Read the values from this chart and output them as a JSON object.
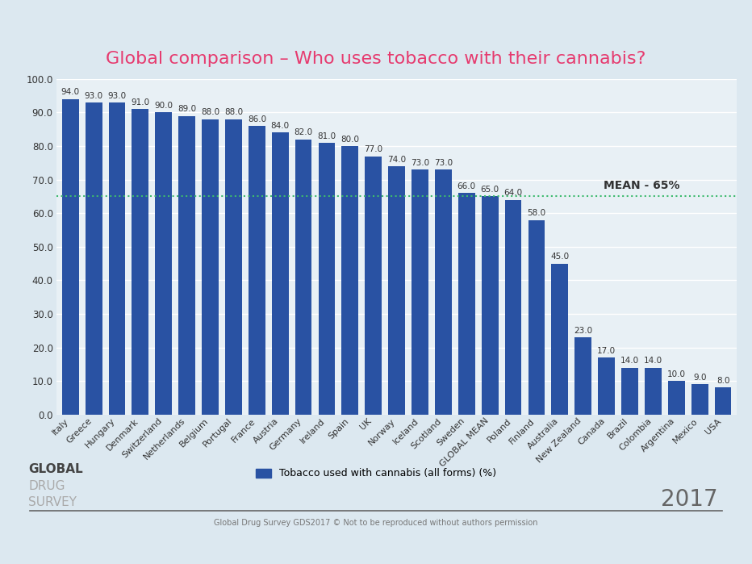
{
  "title": "Global comparison – Who uses tobacco with their cannabis?",
  "title_color": "#e63b6f",
  "background_color": "#dce8f0",
  "plot_background": "#e8f0f5",
  "categories": [
    "Italy",
    "Greece",
    "Hungary",
    "Denmark",
    "Switzerland",
    "Netherlands",
    "Belgium",
    "Portugal",
    "France",
    "Austria",
    "Germany",
    "Ireland",
    "Spain",
    "UK",
    "Norway",
    "Iceland",
    "Scotland",
    "Sweden",
    "GLOBAL MEAN",
    "Poland",
    "Finland",
    "Australia",
    "New Zealand",
    "Canada",
    "Brazil",
    "Colombia",
    "Argentina",
    "Mexico",
    "USA"
  ],
  "values": [
    94.0,
    93.0,
    93.0,
    91.0,
    90.0,
    89.0,
    88.0,
    88.0,
    86.0,
    84.0,
    82.0,
    81.0,
    80.0,
    77.0,
    74.0,
    73.0,
    73.0,
    66.0,
    65.0,
    64.0,
    58.0,
    45.0,
    23.0,
    17.0,
    14.0,
    14.0,
    10.0,
    9.0,
    8.0
  ],
  "bar_color": "#2952a3",
  "mean_line_y": 65.0,
  "mean_label": "MEAN - 65%",
  "mean_line_color": "#3dba6e",
  "ylim": [
    0,
    100
  ],
  "yticks": [
    0.0,
    10.0,
    20.0,
    30.0,
    40.0,
    50.0,
    60.0,
    70.0,
    80.0,
    90.0,
    100.0
  ],
  "legend_text": "Tobacco used with cannabis (all forms) (%)",
  "footer_text": "Global Drug Survey GDS2017 © Not to be reproduced without authors permission",
  "year_text": "2017",
  "grid_color": "#ffffff",
  "axis_label_fontsize": 8.0,
  "value_fontsize": 7.5,
  "title_fontsize": 16
}
